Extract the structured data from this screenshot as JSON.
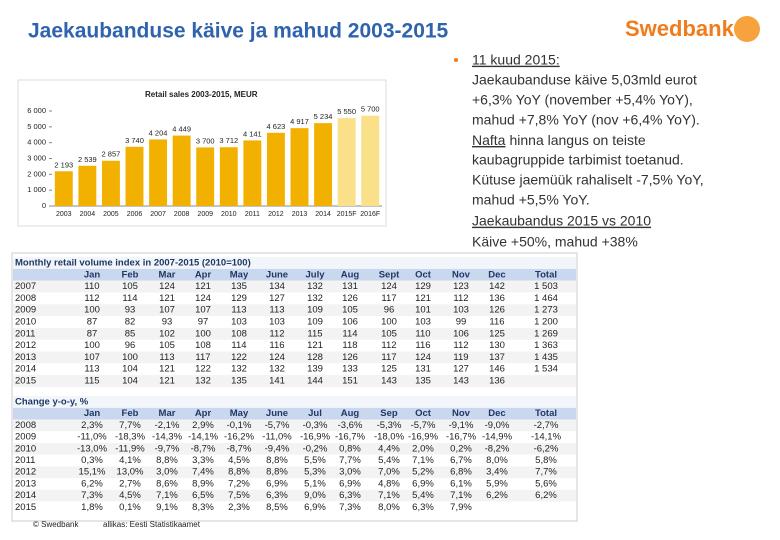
{
  "slide": {
    "title": "Jaekaubanduse käive ja mahud 2003-2015",
    "logo": "Swedbank",
    "footer_left": "© Swedbank",
    "footer_source": "allikas: Eesti Statistikaamet"
  },
  "notes": {
    "heading": "11 kuud 2015:",
    "lines": [
      "Jaekaubanduse käive 5,03mld eurot",
      "+6,3% YoY (november +5,4% YoY),",
      "mahud +7,8% YoY (nov +6,4% YoY).",
      "Nafta",
      "hinna langus on teiste",
      "kaubagruppide tarbimist toetanud.",
      "Kütuse jaemüük rahaliselt -7,5% YoY,",
      "mahud +5,5% YoY.",
      "Jaekaubandus 2015 vs 2010",
      "Käive +50%, mahud +38%"
    ]
  },
  "chart_data": {
    "type": "bar",
    "title": "Retail sales 2003-2015, MEUR",
    "categories": [
      "2003",
      "2004",
      "2005",
      "2006",
      "2007",
      "2008",
      "2009",
      "2010",
      "2011",
      "2012",
      "2013",
      "2014",
      "2015F",
      "2016F"
    ],
    "values": [
      2193,
      2539,
      2857,
      3740,
      4204,
      4449,
      3700,
      3712,
      4141,
      4623,
      4917,
      5234,
      5550,
      5700
    ],
    "value_labels": [
      "2 193",
      "2 539",
      "2 857",
      "3 740",
      "4 204",
      "4 449",
      "3 700",
      "3 712",
      "4 141",
      "4 623",
      "4 917",
      "5 234",
      "5 550",
      "5 700"
    ],
    "colors": [
      "#f2b000",
      "#f2b000",
      "#f2b000",
      "#f2b000",
      "#f2b000",
      "#f2b000",
      "#f2b000",
      "#f2b000",
      "#f2b000",
      "#f2b000",
      "#f2b000",
      "#f2b000",
      "#fbe08a",
      "#fbe08a"
    ],
    "ylim": [
      0,
      6000
    ],
    "yticks": [
      0,
      {
        "value": 1000,
        "label": "1 000"
      },
      {
        "value": 2000,
        "label": "2 000"
      },
      {
        "value": 3000,
        "label": "3 000"
      },
      {
        "value": 4000,
        "label": "4 000"
      },
      {
        "value": 5000,
        "label": "5 000"
      },
      {
        "value": 6000,
        "label": "6 000"
      }
    ],
    "grid": false
  },
  "index_table": {
    "title": "Monthly retail volume index in 2007-2015 (2010=100)",
    "columns": [
      "Jan",
      "Feb",
      "Mar",
      "Apr",
      "May",
      "June",
      "July",
      "Aug",
      "Sept",
      "Oct",
      "Nov",
      "Dec",
      "Total"
    ],
    "rows": [
      [
        "2007",
        "110",
        "105",
        "124",
        "121",
        "135",
        "134",
        "132",
        "131",
        "124",
        "129",
        "123",
        "142",
        "1 503"
      ],
      [
        "2008",
        "112",
        "114",
        "121",
        "124",
        "129",
        "127",
        "132",
        "126",
        "117",
        "121",
        "112",
        "136",
        "1 464"
      ],
      [
        "2009",
        "100",
        "93",
        "107",
        "107",
        "113",
        "113",
        "109",
        "105",
        "96",
        "101",
        "103",
        "126",
        "1 273"
      ],
      [
        "2010",
        "87",
        "82",
        "93",
        "97",
        "103",
        "103",
        "109",
        "106",
        "100",
        "103",
        "99",
        "116",
        "1 200"
      ],
      [
        "2011",
        "87",
        "85",
        "102",
        "100",
        "108",
        "112",
        "115",
        "114",
        "105",
        "110",
        "106",
        "125",
        "1 269"
      ],
      [
        "2012",
        "100",
        "96",
        "105",
        "108",
        "114",
        "116",
        "121",
        "118",
        "112",
        "116",
        "112",
        "130",
        "1 363"
      ],
      [
        "2013",
        "107",
        "100",
        "113",
        "117",
        "122",
        "124",
        "128",
        "126",
        "117",
        "124",
        "119",
        "137",
        "1 435"
      ],
      [
        "2014",
        "113",
        "104",
        "121",
        "122",
        "132",
        "132",
        "139",
        "133",
        "125",
        "131",
        "127",
        "146",
        "1 534"
      ],
      [
        "2015",
        "115",
        "104",
        "121",
        "132",
        "135",
        "141",
        "144",
        "151",
        "143",
        "135",
        "143",
        "136"
      ]
    ]
  },
  "change_table": {
    "title": "Change y-o-y, %",
    "columns": [
      "Jan",
      "Feb",
      "Mar",
      "Apr",
      "May",
      "June",
      "Jul",
      "Aug",
      "Sep",
      "Oct",
      "Nov",
      "Dec",
      "Total"
    ],
    "rows": [
      [
        "2008",
        "2,3%",
        "7,7%",
        "-2,1%",
        "2,9%",
        "-0,1%",
        "-5,7%",
        "-0,3%",
        "-3,6%",
        "-5,3%",
        "-5,7%",
        "-9,1%",
        "-9,0%",
        "-2,7%"
      ],
      [
        "2009",
        "-11,0%",
        "-18,3%",
        "-14,3%",
        "-14,1%",
        "-16,2%",
        "-11,0%",
        "-16,9%",
        "-16,7%",
        "-18,0%",
        "-16,9%",
        "-16,7%",
        "-14,9%",
        "-14,1%"
      ],
      [
        "2010",
        "-13,0%",
        "-11,9%",
        "-9,7%",
        "-8,7%",
        "-8,7%",
        "-9,4%",
        "-0,2%",
        "0,8%",
        "4,4%",
        "2,0%",
        "0,2%",
        "-8,2%",
        "-6,2%"
      ],
      [
        "2011",
        "0,3%",
        "4,1%",
        "8,8%",
        "3,3%",
        "4,5%",
        "8,8%",
        "5,5%",
        "7,7%",
        "5,4%",
        "7,1%",
        "6,7%",
        "8,0%",
        "5,8%"
      ],
      [
        "2012",
        "15,1%",
        "13,0%",
        "3,0%",
        "7,4%",
        "8,8%",
        "8,8%",
        "5,3%",
        "3,0%",
        "7,0%",
        "5,2%",
        "6,8%",
        "3,4%",
        "7,7%"
      ],
      [
        "2013",
        "6,2%",
        "2,7%",
        "8,6%",
        "8,9%",
        "7,2%",
        "6,9%",
        "5,1%",
        "6,9%",
        "4,8%",
        "6,9%",
        "6,1%",
        "5,9%",
        "5,6%"
      ],
      [
        "2014",
        "7,3%",
        "4,5%",
        "7,1%",
        "6,5%",
        "7,5%",
        "6,3%",
        "9,0%",
        "6,3%",
        "7,1%",
        "5,4%",
        "7,1%",
        "6,2%",
        "6,2%"
      ],
      [
        "2015",
        "1,8%",
        "0,1%",
        "9,1%",
        "8,3%",
        "2,3%",
        "8,5%",
        "6,9%",
        "7,3%",
        "8,0%",
        "6,3%",
        "7,9%"
      ]
    ]
  }
}
